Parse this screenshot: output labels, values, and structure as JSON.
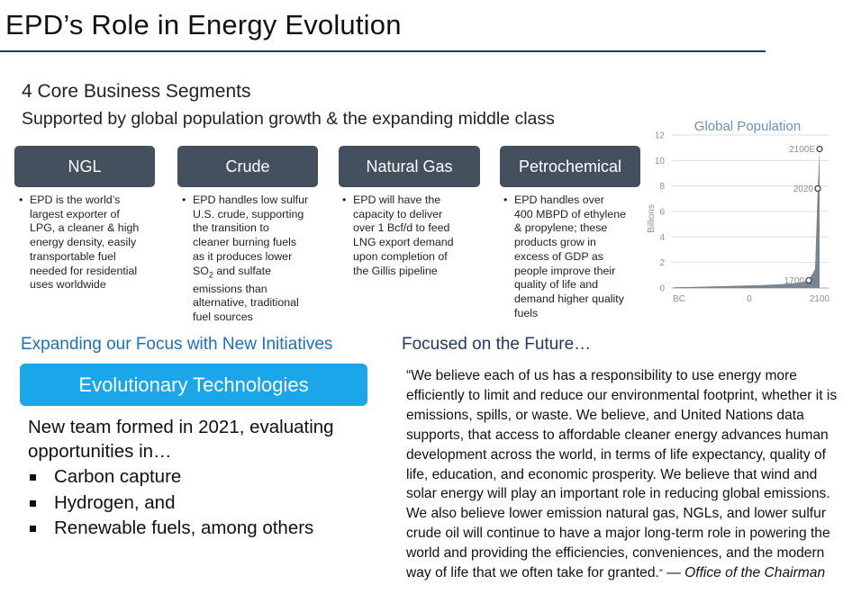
{
  "page": {
    "title": "EPD’s Role in Energy Evolution"
  },
  "segments": {
    "heading": "4 Core Business Segments",
    "subheading": "Supported by global population growth & the expanding middle class",
    "items": [
      {
        "name": "NGL",
        "lines": [
          "EPD is the world’s",
          "largest exporter of",
          "LPG, a cleaner & high",
          "energy density, easily",
          "transportable fuel",
          "needed for residential",
          "uses worldwide"
        ]
      },
      {
        "name": "Crude",
        "lines": [
          "EPD handles low sulfur",
          "U.S. crude, supporting",
          "the transition to",
          "cleaner burning fuels",
          "as it produces lower",
          "SO",
          "2",
          " and sulfate",
          "emissions than",
          "alternative, traditional",
          "fuel sources"
        ]
      },
      {
        "name": "Natural Gas",
        "lines": [
          "EPD will have the",
          "capacity to deliver",
          "over 1 Bcf/d to feed",
          "LNG export demand",
          "upon completion of",
          "the Gillis pipeline"
        ]
      },
      {
        "name": "Petrochemical",
        "lines": [
          "EPD handles over",
          "400 MBPD of ethylene",
          "& propylene; these",
          "products grow in",
          "excess of GDP as",
          "people improve their",
          "quality of life and",
          "demand higher quality",
          "fuels"
        ]
      }
    ]
  },
  "chart_data": {
    "type": "area",
    "title": "Global Population",
    "ylabel": "Billions",
    "xlabel": "",
    "ylim": [
      0,
      12
    ],
    "yticks": [
      "0",
      "2",
      "4",
      "6",
      "8",
      "10",
      "12"
    ],
    "xticks": [
      "BC",
      "0",
      "2100"
    ],
    "grid": true,
    "x": [
      "BC",
      "0",
      "1700",
      "2020",
      "2100E"
    ],
    "values": [
      0.05,
      0.2,
      0.6,
      7.8,
      10.9
    ],
    "annotations": [
      "1700",
      "2020",
      "2100E"
    ],
    "colors": {
      "fill": "#7a8594",
      "title": "#6b8fb8",
      "grid": "#d9dde3",
      "axis": "#a0a6ae"
    }
  },
  "initiatives": {
    "heading": "Expanding our Focus with New Initiatives",
    "box_label": "Evolutionary Technologies",
    "intro": "New team formed in 2021, evaluating opportunities in…",
    "bullets": [
      "Carbon capture",
      "Hydrogen, and",
      "Renewable fuels, among others"
    ]
  },
  "future": {
    "heading": "Focused on the Future…",
    "quote": "“We believe each of us has a responsibility to use energy more efficiently to limit and reduce our environmental footprint, whether it is emissions, spills, or waste.  We believe, and United Nations data supports, that access to affordable cleaner energy advances human development across the world, in terms of life expectancy, quality of life, education, and economic prosperity.  We believe that wind and solar energy will play an important role in reducing global emissions.  We also believe lower emission natural gas, NGLs, and lower sulfur crude oil will continue to have a major long-term role in powering the world and providing the efficiencies, conveniences, and the modern way of life that we often take for granted.",
    "close_quote": "”",
    "dash": " — ",
    "attribution": "Office of the Chairman"
  },
  "colors": {
    "title_rule": "#1f3a68",
    "segment_box": "#45505f",
    "accent_blue": "#1d6fc1",
    "evo_box": "#1aa6e8",
    "future_heading": "#1f3a68"
  }
}
